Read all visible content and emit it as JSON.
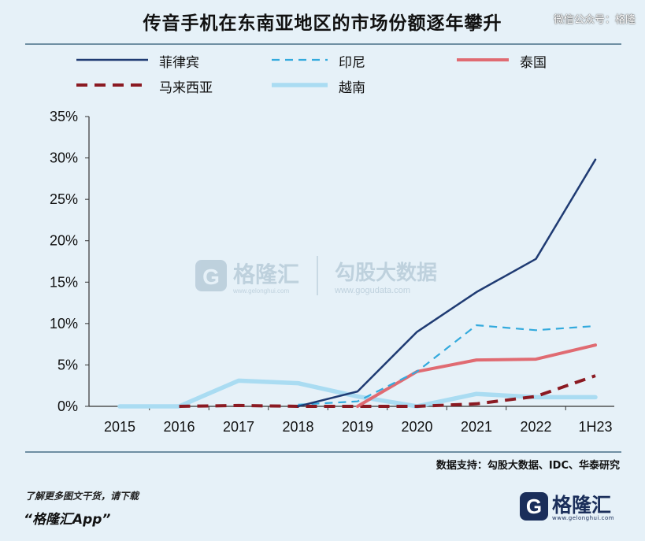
{
  "header": {
    "title": "传音手机在东南亚地区的市场份额逐年攀升",
    "wechat_tag": "微信公众号：格隆"
  },
  "watermark": {
    "brand_left": "格隆汇",
    "url_left": "www.gelonghui.com",
    "brand_right": "勾股大数据",
    "url_right": "www.gogudata.com"
  },
  "footer": {
    "source": "数据支持：勾股大数据、IDC、华泰研究",
    "hint": "了解更多图文干货，请下载",
    "app": "“格隆汇App”",
    "logo_name": "格隆汇",
    "logo_url": "www.gelonghui.com"
  },
  "chart_data": {
    "type": "line",
    "title": "传音手机在东南亚地区的市场份额逐年攀升",
    "xlabel": "",
    "ylabel": "",
    "categories": [
      "2015",
      "2016",
      "2017",
      "2018",
      "2019",
      "2020",
      "2021",
      "2022",
      "1H23"
    ],
    "ylim": [
      0,
      35
    ],
    "yticks": [
      0,
      5,
      10,
      15,
      20,
      25,
      30,
      35
    ],
    "ytick_labels": [
      "0%",
      "5%",
      "10%",
      "15%",
      "20%",
      "25%",
      "30%",
      "35%"
    ],
    "grid": false,
    "legend_position": "top",
    "series": [
      {
        "name": "菲律宾",
        "color": "#1f3b73",
        "style": "solid",
        "width": 2.5,
        "values": [
          null,
          null,
          null,
          0,
          1.8,
          9.0,
          13.8,
          17.8,
          29.8
        ]
      },
      {
        "name": "印尼",
        "color": "#33aadd",
        "style": "dashed",
        "width": 2.2,
        "values": [
          null,
          null,
          null,
          0.2,
          0.6,
          4.2,
          9.8,
          9.2,
          9.7
        ]
      },
      {
        "name": "泰国",
        "color": "#e06b72",
        "style": "solid",
        "width": 4,
        "values": [
          null,
          null,
          null,
          null,
          0,
          4.2,
          5.6,
          5.7,
          7.4
        ]
      },
      {
        "name": "马来西亚",
        "color": "#8b1a22",
        "style": "dashed",
        "width": 4,
        "values": [
          null,
          0,
          0.1,
          0,
          0,
          0,
          0.3,
          1.2,
          3.7
        ]
      },
      {
        "name": "越南",
        "color": "#aadcf2",
        "style": "solid",
        "width": 5.5,
        "values": [
          0,
          0,
          3.1,
          2.8,
          1.2,
          0,
          1.5,
          1.1,
          1.1
        ]
      }
    ]
  }
}
